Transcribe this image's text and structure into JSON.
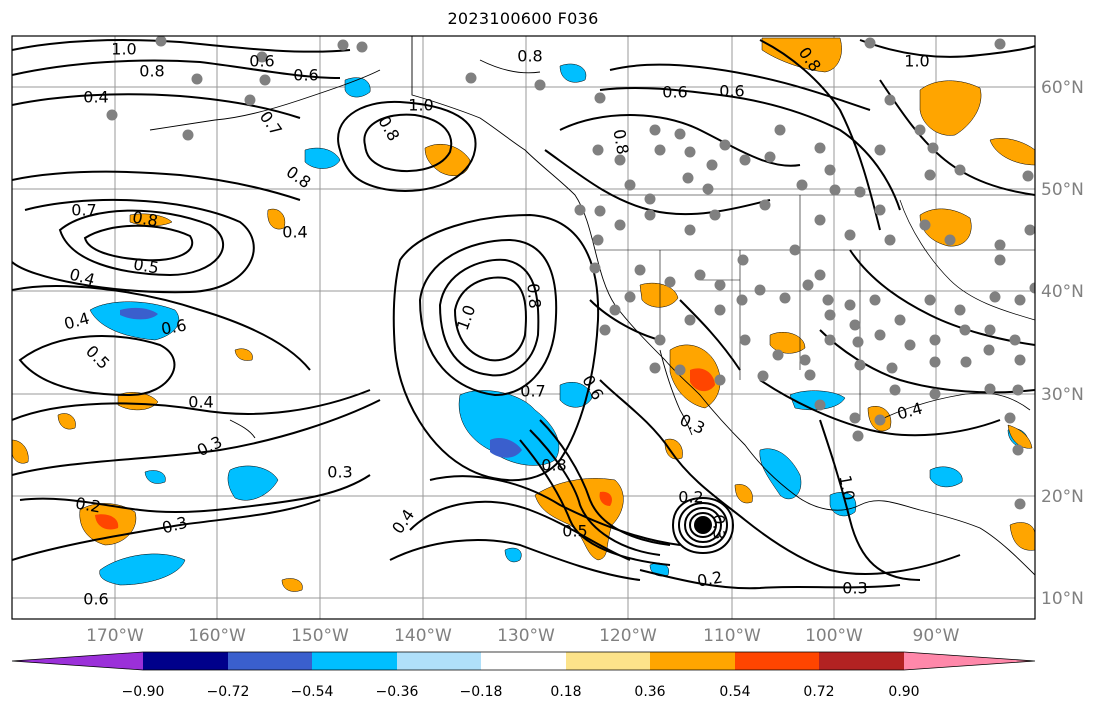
{
  "title": "2023100600 F036",
  "map": {
    "lon_ticks": [
      "170°W",
      "160°W",
      "150°W",
      "140°W",
      "130°W",
      "120°W",
      "110°W",
      "100°W",
      "90°W"
    ],
    "lat_ticks": [
      "60°N",
      "50°N",
      "40°N",
      "30°N",
      "20°N",
      "10°N"
    ],
    "contour_labels": [
      "1.0",
      "0.8",
      "0.6",
      "0.6",
      "0.8",
      "1.0",
      "0.7",
      "0.8",
      "0.4",
      "0.4",
      "0.6",
      "0.7",
      "0.8",
      "0.5",
      "0.4",
      "0.4",
      "0.6",
      "0.5",
      "0.4",
      "0.3",
      "0.2",
      "0.3",
      "1.0",
      "0.8",
      "0.7",
      "0.6",
      "0.8",
      "0.4",
      "0.3",
      "0.5",
      "0.2",
      "0.3",
      "0.2",
      "0.3",
      "0.8",
      "0.3",
      "0.4"
    ],
    "gray_color": "#808080"
  },
  "colorbar": {
    "labels": [
      "−0.90",
      "−0.72",
      "−0.54",
      "−0.36",
      "−0.18",
      "0.18",
      "0.36",
      "0.54",
      "0.72",
      "0.90"
    ],
    "colors": [
      "#9b30d9",
      "#00008b",
      "#3a5fcd",
      "#00bfff",
      "#b0e0fa",
      "#ffffff",
      "#fce38a",
      "#ffa500",
      "#ff4500",
      "#b22222",
      "#ff88aa"
    ]
  }
}
